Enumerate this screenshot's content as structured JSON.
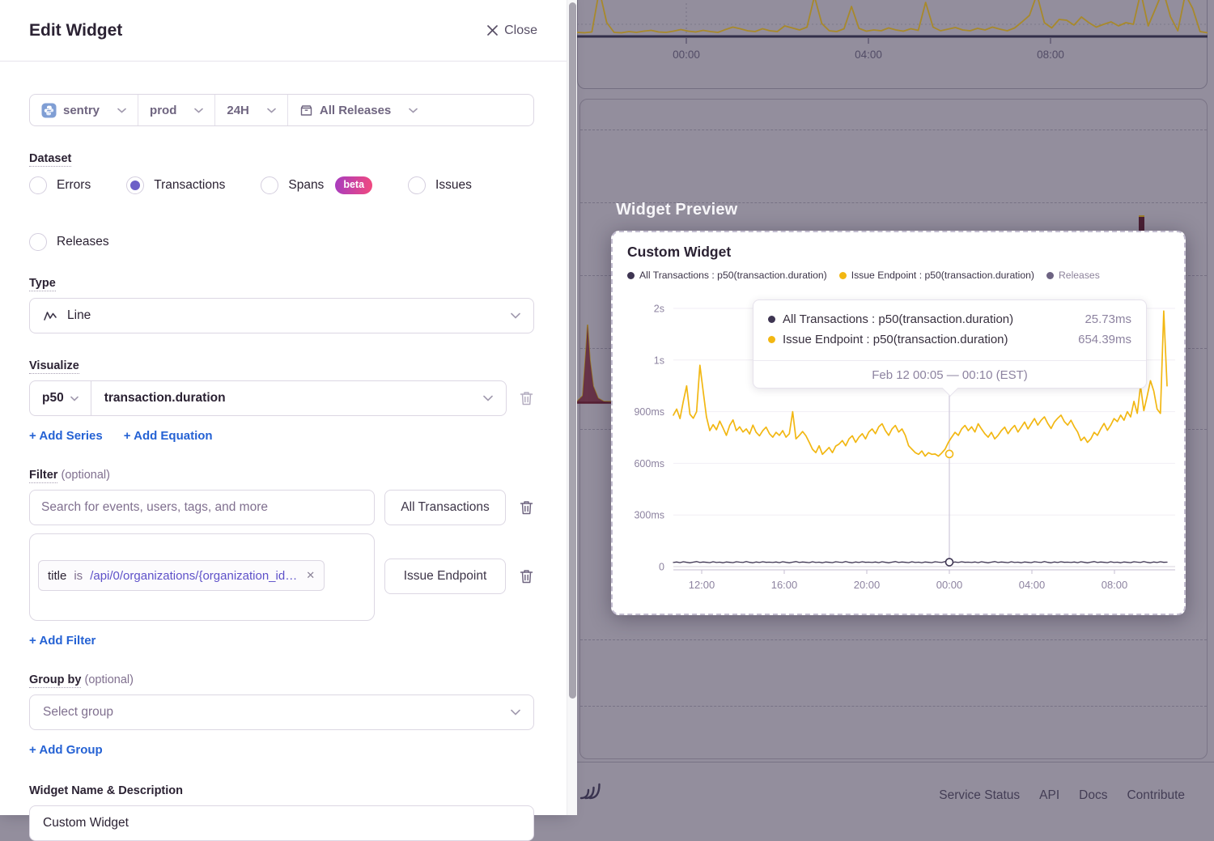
{
  "dialog": {
    "title": "Edit Widget",
    "close_label": "Close",
    "page_filters": {
      "project": "sentry",
      "environment": "prod",
      "period": "24H",
      "releases": "All Releases"
    },
    "dataset": {
      "label": "Dataset",
      "options": [
        {
          "label": "Errors",
          "selected": false
        },
        {
          "label": "Transactions",
          "selected": true
        },
        {
          "label": "Spans",
          "selected": false,
          "badge": "beta"
        },
        {
          "label": "Issues",
          "selected": false
        },
        {
          "label": "Releases",
          "selected": false
        }
      ]
    },
    "type": {
      "label": "Type",
      "value": "Line"
    },
    "visualize": {
      "label": "Visualize",
      "aggregate": "p50",
      "field": "transaction.duration",
      "add_series": "+ Add Series",
      "add_equation": "+ Add Equation"
    },
    "filter": {
      "label": "Filter",
      "optional": "(optional)",
      "rows": [
        {
          "placeholder": "Search for events, users, tags, and more",
          "alias": "All Transactions"
        },
        {
          "token": {
            "key": "title",
            "op": "is",
            "value": "/api/0/organizations/{organization_id…"
          },
          "alias": "Issue Endpoint"
        }
      ],
      "add_filter": "+ Add Filter"
    },
    "group_by": {
      "label": "Group by",
      "optional": "(optional)",
      "placeholder": "Select group",
      "add_group": "+ Add Group"
    },
    "name_section": {
      "label": "Widget Name & Description",
      "value": "Custom Widget"
    }
  },
  "preview": {
    "heading": "Widget Preview",
    "card_title": "Custom Widget",
    "legend": [
      {
        "label": "All Transactions : p50(transaction.duration)",
        "color": "#3e3552"
      },
      {
        "label": "Issue Endpoint : p50(transaction.duration)",
        "color": "#f2b712"
      },
      {
        "label": "Releases",
        "color": "#6d6382"
      }
    ],
    "tooltip": {
      "rows": [
        {
          "label": "All Transactions : p50(transaction.duration)",
          "value": "25.73ms",
          "color": "#3e3552"
        },
        {
          "label": "Issue Endpoint : p50(transaction.duration)",
          "value": "654.39ms",
          "color": "#f2b712"
        }
      ],
      "date": "Feb 12 00:05 — 00:10 (EST)"
    }
  },
  "footer": {
    "links": [
      "Service Status",
      "API",
      "Docs",
      "Contribute"
    ]
  },
  "background_panel": {
    "ylabel_fragment": "s"
  },
  "chart_data": [
    {
      "id": "preview-chart",
      "type": "line",
      "title": "Custom Widget",
      "xlabel": "",
      "ylabel": "",
      "grid": true,
      "legend_position": "top",
      "y_ticks": [
        {
          "label": "0",
          "value": 0
        },
        {
          "label": "300ms",
          "value": 300
        },
        {
          "label": "600ms",
          "value": 600
        },
        {
          "label": "900ms",
          "value": 900
        },
        {
          "label": "1s",
          "value": 1000
        },
        {
          "label": "2s",
          "value": 2000
        }
      ],
      "x_ticks": [
        "12:00",
        "16:00",
        "20:00",
        "00:00",
        "04:00",
        "08:00"
      ],
      "x_range_hours": 24,
      "hover": {
        "x_tick_index": 3,
        "values": [
          25.73,
          654.39
        ]
      },
      "series": [
        {
          "name": "All Transactions : p50(transaction.duration)",
          "color": "#3e3552",
          "unit": "ms",
          "values": [
            24,
            27,
            23,
            28,
            25,
            22,
            26,
            29,
            24,
            27,
            25,
            23,
            28,
            24,
            26,
            22,
            27,
            25,
            23,
            28,
            26,
            24,
            29,
            25,
            22,
            27,
            24,
            28,
            25,
            26,
            24,
            27,
            23,
            28,
            25,
            22,
            26,
            29,
            24,
            27,
            25,
            23,
            28,
            24,
            26,
            22,
            27,
            25,
            23,
            28,
            26,
            24,
            29,
            25,
            22,
            27,
            24,
            28,
            25,
            26,
            24,
            27,
            23,
            28,
            25,
            22,
            26,
            29,
            24,
            27,
            25,
            23,
            28,
            24,
            26,
            22,
            27,
            25,
            23,
            28,
            26,
            24,
            29,
            25,
            22,
            27,
            24,
            28,
            25,
            26,
            24,
            27,
            23,
            28,
            25,
            22,
            26,
            29,
            24,
            27,
            25,
            23,
            28,
            24,
            26,
            22,
            27,
            25,
            23,
            28,
            26,
            24,
            29,
            25,
            22,
            27,
            24,
            28,
            25,
            26,
            24,
            27,
            23,
            28,
            25,
            22,
            26,
            29,
            24,
            27,
            25,
            23,
            28,
            24,
            26,
            22,
            27,
            25,
            23,
            28,
            26,
            24,
            29,
            25,
            22,
            27,
            24,
            28,
            25,
            26
          ]
        },
        {
          "name": "Issue Endpoint : p50(transaction.duration)",
          "color": "#f2b712",
          "unit": "ms",
          "values": [
            880,
            905,
            860,
            920,
            950,
            885,
            862,
            900,
            990,
            940,
            870,
            790,
            825,
            795,
            845,
            805,
            762,
            820,
            852,
            790,
            812,
            782,
            800,
            770,
            822,
            780,
            760,
            790,
            810,
            772,
            752,
            780,
            762,
            790,
            752,
            772,
            900,
            742,
            762,
            785,
            760,
            722,
            682,
            662,
            702,
            652,
            672,
            692,
            662,
            700,
            712,
            732,
            702,
            742,
            760,
            722,
            752,
            772,
            742,
            782,
            800,
            772,
            812,
            830,
            790,
            762,
            800,
            820,
            782,
            800,
            762,
            702,
            682,
            662,
            652,
            672,
            642,
            662,
            652,
            654,
            642,
            660,
            682,
            722,
            752,
            780,
            762,
            800,
            820,
            790,
            812,
            782,
            830,
            800,
            772,
            752,
            780,
            742,
            762,
            790,
            810,
            772,
            800,
            820,
            782,
            810,
            840,
            800,
            830,
            860,
            822,
            850,
            870,
            832,
            802,
            840,
            862,
            880,
            842,
            822,
            850,
            812,
            782,
            732,
            752,
            722,
            742,
            780,
            762,
            800,
            832,
            792,
            822,
            860,
            842,
            880,
            850,
            900,
            870,
            920,
            890,
            950,
            902,
            930,
            960,
            940,
            905,
            890,
            1950,
            950
          ]
        }
      ]
    },
    {
      "id": "background-chart",
      "type": "line",
      "x_ticks": [
        "00:00",
        "04:00",
        "08:00"
      ],
      "series": [
        {
          "name": "background-series",
          "color": "#a8892b",
          "values": [
            6,
            5,
            7,
            110,
            30,
            6,
            5,
            8,
            6,
            9,
            11,
            7,
            6,
            9,
            13,
            9,
            7,
            11,
            8,
            6,
            13,
            19,
            15,
            10,
            8,
            15,
            10,
            8,
            22,
            17,
            12,
            19,
            95,
            28,
            10,
            8,
            15,
            70,
            16,
            9,
            12,
            10,
            17,
            12,
            9,
            15,
            11,
            80,
            19,
            10,
            14,
            18,
            12,
            10,
            16,
            12,
            19,
            14,
            10,
            17,
            32,
            48,
            100,
            30,
            17,
            38,
            36,
            24,
            44,
            30,
            19,
            26,
            32,
            22,
            30,
            26,
            105,
            22,
            65,
            110,
            45,
            10,
            100,
            65,
            8,
            5
          ]
        }
      ]
    }
  ]
}
